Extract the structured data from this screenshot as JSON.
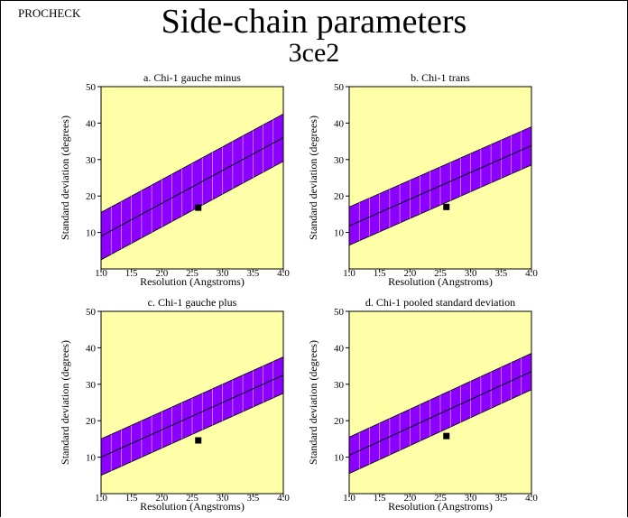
{
  "header": {
    "program": "PROCHECK",
    "title": "Side-chain parameters",
    "pdb_code": "3ce2"
  },
  "colors": {
    "plot_background": "#ffffa8",
    "band_fill": "#8b00ff",
    "band_stripes": "#ffffff",
    "line": "#000000",
    "point": "#000000"
  },
  "chart_data": [
    {
      "type": "line",
      "title": "a. Chi-1 gauche minus",
      "xlabel": "Resolution (Angstroms)",
      "ylabel": "Standard deviation (degrees)",
      "xlim": [
        1.0,
        4.0
      ],
      "ylim": [
        0,
        50
      ],
      "xticks": [
        "1.0",
        "1.5",
        "2.0",
        "2.5",
        "3.0",
        "3.5",
        "4.0"
      ],
      "yticks": [
        "10",
        "20",
        "30",
        "40",
        "50"
      ],
      "band_line": {
        "x": [
          1.0,
          4.0
        ],
        "y": [
          9.0,
          36.0
        ]
      },
      "band_upper": {
        "x": [
          1.0,
          4.0
        ],
        "y": [
          15.5,
          42.5
        ]
      },
      "band_lower": {
        "x": [
          1.0,
          4.0
        ],
        "y": [
          2.5,
          29.5
        ]
      },
      "point": {
        "x": 2.6,
        "y": 16.8
      }
    },
    {
      "type": "line",
      "title": "b. Chi-1 trans",
      "xlabel": "Resolution (Angstroms)",
      "ylabel": "Standard deviation (degrees)",
      "xlim": [
        1.0,
        4.0
      ],
      "ylim": [
        0,
        50
      ],
      "xticks": [
        "1.0",
        "1.5",
        "2.0",
        "2.5",
        "3.0",
        "3.5",
        "4.0"
      ],
      "yticks": [
        "10",
        "20",
        "30",
        "40",
        "50"
      ],
      "band_line": {
        "x": [
          1.0,
          4.0
        ],
        "y": [
          11.8,
          33.8
        ]
      },
      "band_upper": {
        "x": [
          1.0,
          4.0
        ],
        "y": [
          17.0,
          39.0
        ]
      },
      "band_lower": {
        "x": [
          1.0,
          4.0
        ],
        "y": [
          6.5,
          28.5
        ]
      },
      "point": {
        "x": 2.6,
        "y": 17.0
      }
    },
    {
      "type": "line",
      "title": "c. Chi-1 gauche plus",
      "xlabel": "Resolution (Angstroms)",
      "ylabel": "Standard deviation (degrees)",
      "xlim": [
        1.0,
        4.0
      ],
      "ylim": [
        0,
        50
      ],
      "xticks": [
        "1.0",
        "1.5",
        "2.0",
        "2.5",
        "3.0",
        "3.5",
        "4.0"
      ],
      "yticks": [
        "10",
        "20",
        "30",
        "40",
        "50"
      ],
      "band_line": {
        "x": [
          1.0,
          4.0
        ],
        "y": [
          10.0,
          32.5
        ]
      },
      "band_upper": {
        "x": [
          1.0,
          4.0
        ],
        "y": [
          15.0,
          37.5
        ]
      },
      "band_lower": {
        "x": [
          1.0,
          4.0
        ],
        "y": [
          5.0,
          27.5
        ]
      },
      "point": {
        "x": 2.6,
        "y": 14.6
      }
    },
    {
      "type": "line",
      "title": "d. Chi-1 pooled standard deviation",
      "xlabel": "Resolution (Angstroms)",
      "ylabel": "Standard deviation (degrees)",
      "xlim": [
        1.0,
        4.0
      ],
      "ylim": [
        0,
        50
      ],
      "xticks": [
        "1.0",
        "1.5",
        "2.0",
        "2.5",
        "3.0",
        "3.5",
        "4.0"
      ],
      "yticks": [
        "10",
        "20",
        "30",
        "40",
        "50"
      ],
      "band_line": {
        "x": [
          1.0,
          4.0
        ],
        "y": [
          10.5,
          33.5
        ]
      },
      "band_upper": {
        "x": [
          1.0,
          4.0
        ],
        "y": [
          15.5,
          38.5
        ]
      },
      "band_lower": {
        "x": [
          1.0,
          4.0
        ],
        "y": [
          5.5,
          28.5
        ]
      },
      "point": {
        "x": 2.6,
        "y": 15.8
      }
    }
  ]
}
